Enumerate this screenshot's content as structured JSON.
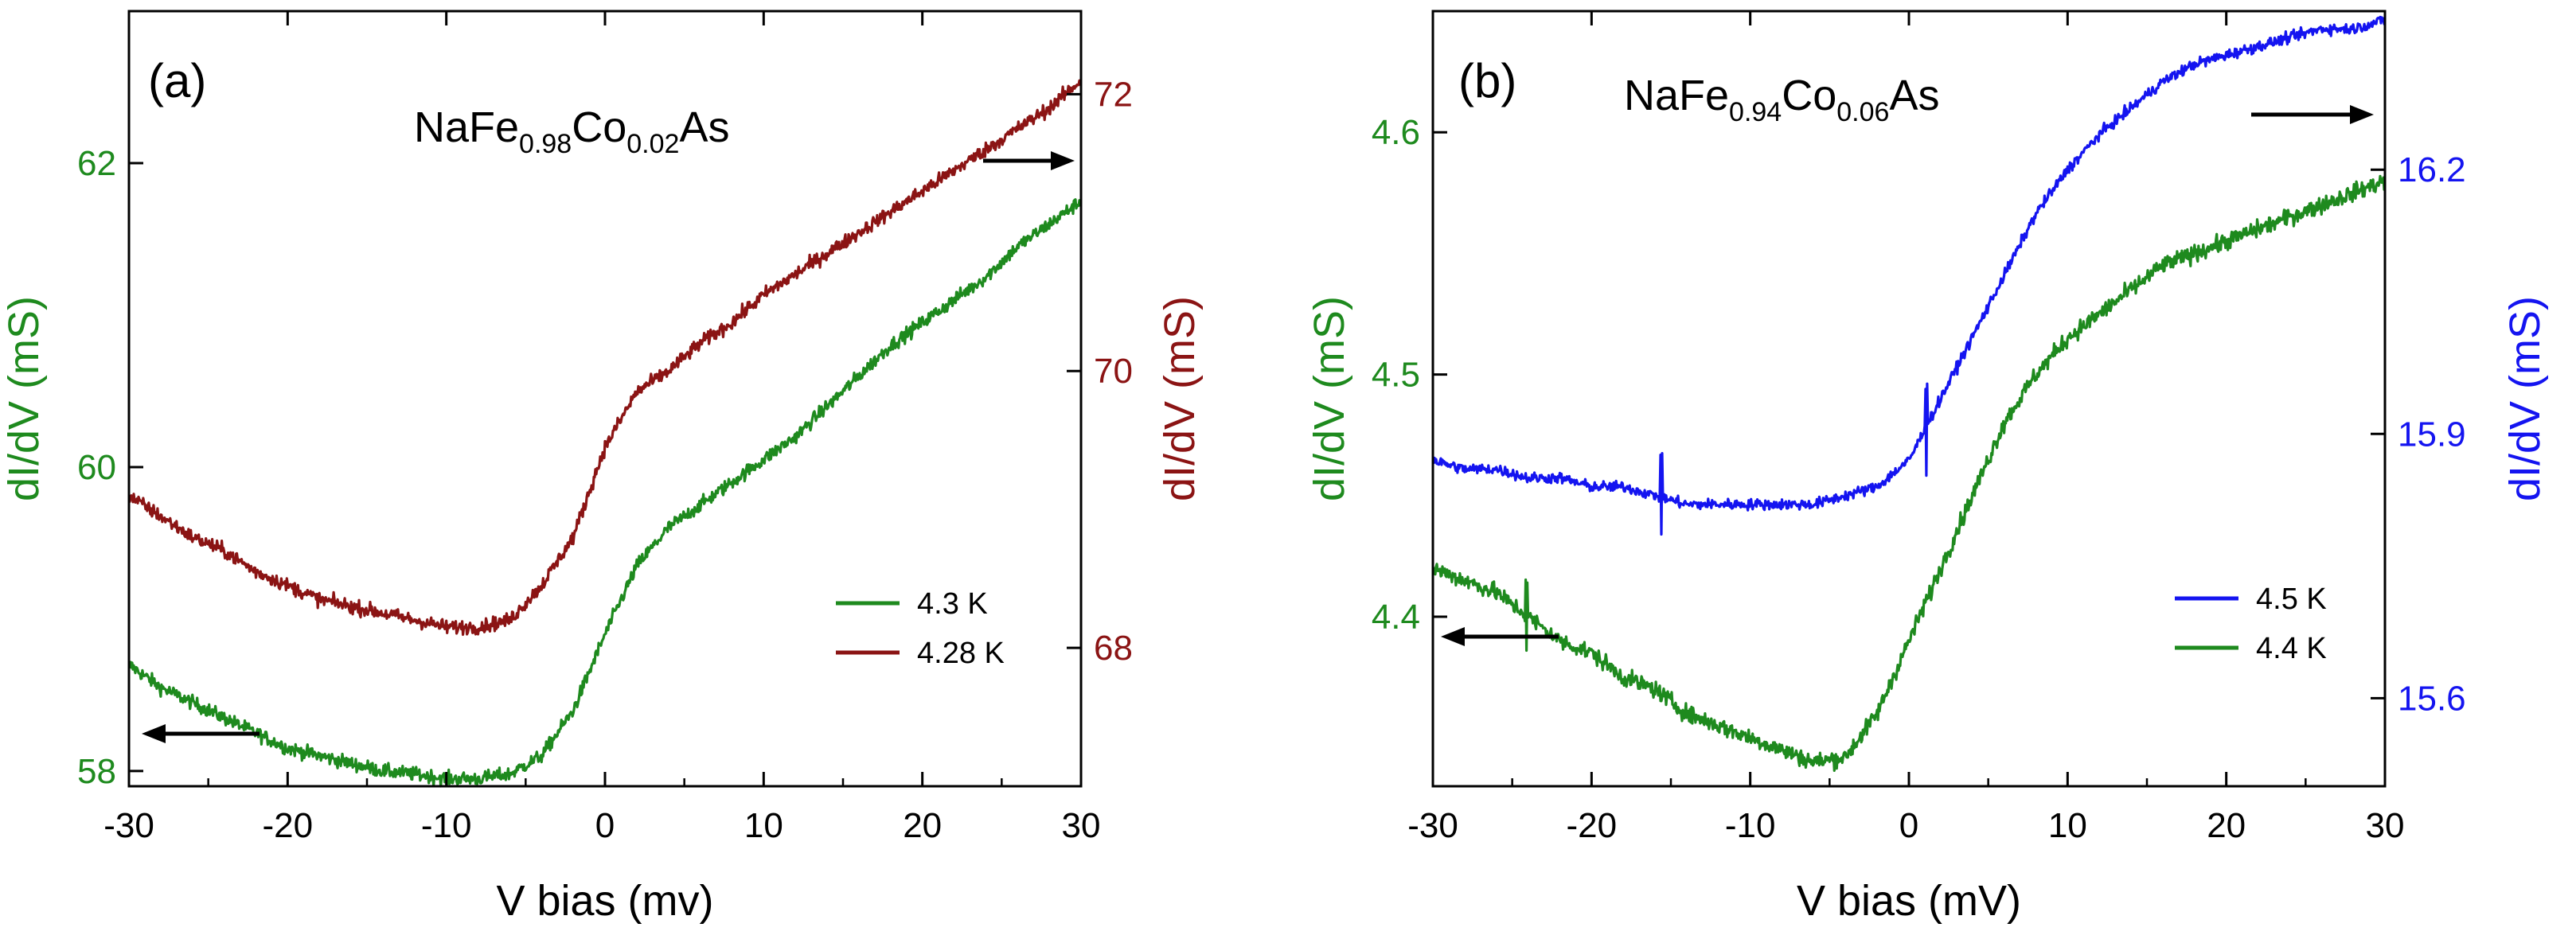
{
  "chart_data": [
    {
      "type": "line",
      "panel_label": "(a)",
      "title_parts": [
        {
          "text": "NaFe",
          "sub": false
        },
        {
          "text": "0.98",
          "sub": true
        },
        {
          "text": "Co",
          "sub": false
        },
        {
          "text": "0.02",
          "sub": true
        },
        {
          "text": "As",
          "sub": false
        }
      ],
      "xlabel": "V bias (mv)",
      "ylabel_left": "dI/dV (mS)",
      "ylabel_right": "dI/dV (mS)",
      "xlim": [
        -30,
        30
      ],
      "x_ticks": [
        -30,
        -20,
        -10,
        0,
        10,
        20,
        30
      ],
      "ylim_left": [
        57.9,
        63.0
      ],
      "y_ticks_left": [
        58,
        60,
        62
      ],
      "ylim_right": [
        67.0,
        72.6
      ],
      "y_ticks_right": [
        68,
        70,
        72
      ],
      "colors": {
        "left_axis": "#1e8a1e",
        "right_axis": "#8b1414"
      },
      "legend": {
        "placement": "lower-right",
        "entries": [
          "4.3 K",
          "4.28 K"
        ]
      },
      "series": [
        {
          "name": "4.3 K",
          "axis": "left",
          "color": "#1e8a1e",
          "x": [
            -30,
            -28,
            -26,
            -24,
            -22,
            -20,
            -18,
            -16,
            -14,
            -12,
            -10,
            -8,
            -6,
            -4,
            -2,
            0,
            2,
            4,
            6,
            8,
            10,
            12,
            14,
            16,
            18,
            20,
            22,
            24,
            26,
            28,
            30
          ],
          "y": [
            58.7,
            58.55,
            58.45,
            58.35,
            58.25,
            58.15,
            58.1,
            58.05,
            58.0,
            57.98,
            57.95,
            57.95,
            57.98,
            58.1,
            58.4,
            58.9,
            59.35,
            59.6,
            59.75,
            59.9,
            60.05,
            60.2,
            60.4,
            60.6,
            60.8,
            60.95,
            61.1,
            61.25,
            61.45,
            61.6,
            61.75
          ],
          "noise": 0.045
        },
        {
          "name": "4.28 K",
          "axis": "right",
          "color": "#8b1414",
          "x": [
            -30,
            -28,
            -26,
            -24,
            -22,
            -20,
            -18,
            -16,
            -14,
            -12,
            -10,
            -8,
            -6,
            -4,
            -2,
            0,
            2,
            4,
            6,
            8,
            10,
            12,
            14,
            16,
            18,
            20,
            22,
            24,
            26,
            28,
            30
          ],
          "y": [
            69.1,
            68.95,
            68.8,
            68.7,
            68.55,
            68.45,
            68.35,
            68.3,
            68.25,
            68.2,
            68.15,
            68.15,
            68.2,
            68.45,
            68.8,
            69.45,
            69.85,
            70.0,
            70.2,
            70.35,
            70.55,
            70.7,
            70.85,
            71.0,
            71.15,
            71.3,
            71.45,
            71.6,
            71.75,
            71.9,
            72.1
          ],
          "noise": 0.05
        }
      ]
    },
    {
      "type": "line",
      "panel_label": "(b)",
      "title_parts": [
        {
          "text": "NaFe",
          "sub": false
        },
        {
          "text": "0.94",
          "sub": true
        },
        {
          "text": "Co",
          "sub": false
        },
        {
          "text": "0.06",
          "sub": true
        },
        {
          "text": "As",
          "sub": false
        }
      ],
      "xlabel": "V bias (mV)",
      "ylabel_left": "dI/dV (mS)",
      "ylabel_right": "dI/dV (mS)",
      "xlim": [
        -30,
        30
      ],
      "x_ticks": [
        -30,
        -20,
        -10,
        0,
        10,
        20,
        30
      ],
      "ylim_left": [
        4.33,
        4.65
      ],
      "y_ticks_left": [
        4.4,
        4.5,
        4.6
      ],
      "ylim_right": [
        15.5,
        16.38
      ],
      "y_ticks_right": [
        15.6,
        15.9,
        16.2
      ],
      "colors": {
        "left_axis": "#1e8a1e",
        "right_axis": "#1414f0"
      },
      "legend": {
        "placement": "lower-right",
        "entries": [
          "4.5 K",
          "4.4 K"
        ]
      },
      "series": [
        {
          "name": "4.5 K",
          "axis": "right",
          "color": "#1414f0",
          "x": [
            -30,
            -28,
            -26,
            -24,
            -22,
            -20,
            -18,
            -16,
            -14,
            -12,
            -10,
            -8,
            -6,
            -4,
            -2,
            0,
            2,
            4,
            6,
            8,
            10,
            12,
            14,
            16,
            18,
            20,
            22,
            24,
            26,
            28,
            30
          ],
          "y": [
            15.87,
            15.86,
            15.86,
            15.85,
            15.85,
            15.84,
            15.84,
            15.83,
            15.82,
            15.82,
            15.82,
            15.82,
            15.82,
            15.83,
            15.84,
            15.87,
            15.94,
            16.01,
            16.08,
            16.15,
            16.2,
            16.24,
            16.27,
            16.3,
            16.32,
            16.33,
            16.34,
            16.35,
            16.36,
            16.36,
            16.37
          ],
          "noise": 0.006
        },
        {
          "name": "4.4 K",
          "axis": "left",
          "color": "#1e8a1e",
          "x": [
            -30,
            -28,
            -26,
            -24,
            -22,
            -20,
            -18,
            -16,
            -14,
            -12,
            -10,
            -8,
            -6,
            -4,
            -2,
            0,
            2,
            4,
            6,
            8,
            10,
            12,
            14,
            16,
            18,
            20,
            22,
            24,
            26,
            28,
            30
          ],
          "y": [
            4.42,
            4.415,
            4.41,
            4.4,
            4.39,
            4.385,
            4.375,
            4.37,
            4.36,
            4.355,
            4.35,
            4.345,
            4.34,
            4.342,
            4.36,
            4.39,
            4.42,
            4.45,
            4.48,
            4.5,
            4.515,
            4.525,
            4.535,
            4.545,
            4.55,
            4.555,
            4.56,
            4.565,
            4.57,
            4.575,
            4.58
          ],
          "noise": 0.0035
        }
      ]
    }
  ]
}
